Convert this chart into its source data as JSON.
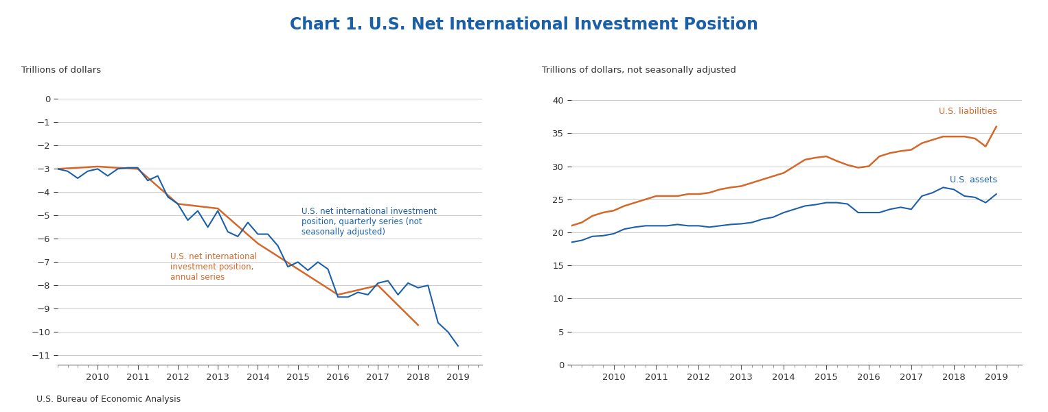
{
  "title": "Chart 1. U.S. Net International Investment Position",
  "title_color": "#1a5fa8",
  "title_fontsize": 17,
  "title_fontweight": "bold",
  "left_ylabel": "Trillions of dollars",
  "right_ylabel": "Trillions of dollars, not seasonally adjusted",
  "left_yticks": [
    0,
    -1,
    -2,
    -3,
    -4,
    -5,
    -6,
    -7,
    -8,
    -9,
    -10,
    -11
  ],
  "right_yticks": [
    0,
    5,
    10,
    15,
    20,
    25,
    30,
    35,
    40
  ],
  "source_text": "U.S. Bureau of Economic Analysis",
  "annual_x": [
    2009.0,
    2010.0,
    2011.0,
    2012.0,
    2013.0,
    2014.0,
    2015.0,
    2016.0,
    2017.0,
    2018.0
  ],
  "annual_y": [
    -3.0,
    -2.9,
    -3.0,
    -4.5,
    -4.7,
    -6.2,
    -7.3,
    -8.4,
    -8.0,
    -9.7
  ],
  "quarterly_x": [
    2009.0,
    2009.25,
    2009.5,
    2009.75,
    2010.0,
    2010.25,
    2010.5,
    2010.75,
    2011.0,
    2011.25,
    2011.5,
    2011.75,
    2012.0,
    2012.25,
    2012.5,
    2012.75,
    2013.0,
    2013.25,
    2013.5,
    2013.75,
    2014.0,
    2014.25,
    2014.5,
    2014.75,
    2015.0,
    2015.25,
    2015.5,
    2015.75,
    2016.0,
    2016.25,
    2016.5,
    2016.75,
    2017.0,
    2017.25,
    2017.5,
    2017.75,
    2018.0,
    2018.25,
    2018.5,
    2018.75,
    2019.0
  ],
  "quarterly_y": [
    -3.0,
    -3.1,
    -3.4,
    -3.1,
    -3.0,
    -3.3,
    -3.0,
    -2.95,
    -2.95,
    -3.5,
    -3.3,
    -4.2,
    -4.5,
    -5.2,
    -4.8,
    -5.5,
    -4.8,
    -5.7,
    -5.9,
    -5.3,
    -5.8,
    -5.8,
    -6.3,
    -7.2,
    -7.0,
    -7.35,
    -7.0,
    -7.3,
    -8.5,
    -8.5,
    -8.3,
    -8.4,
    -7.9,
    -7.8,
    -8.4,
    -7.9,
    -8.1,
    -8.0,
    -9.6,
    -10.0,
    -10.6
  ],
  "assets_x": [
    2009.0,
    2009.25,
    2009.5,
    2009.75,
    2010.0,
    2010.25,
    2010.5,
    2010.75,
    2011.0,
    2011.25,
    2011.5,
    2011.75,
    2012.0,
    2012.25,
    2012.5,
    2012.75,
    2013.0,
    2013.25,
    2013.5,
    2013.75,
    2014.0,
    2014.25,
    2014.5,
    2014.75,
    2015.0,
    2015.25,
    2015.5,
    2015.75,
    2016.0,
    2016.25,
    2016.5,
    2016.75,
    2017.0,
    2017.25,
    2017.5,
    2017.75,
    2018.0,
    2018.25,
    2018.5,
    2018.75,
    2019.0
  ],
  "assets_y": [
    18.5,
    18.8,
    19.4,
    19.5,
    19.8,
    20.5,
    20.8,
    21.0,
    21.0,
    21.0,
    21.2,
    21.0,
    21.0,
    20.8,
    21.0,
    21.2,
    21.3,
    21.5,
    22.0,
    22.3,
    23.0,
    23.5,
    24.0,
    24.2,
    24.5,
    24.5,
    24.3,
    23.0,
    23.0,
    23.0,
    23.5,
    23.8,
    23.5,
    25.5,
    26.0,
    26.8,
    26.5,
    25.5,
    25.3,
    24.5,
    25.8
  ],
  "liabilities_x": [
    2009.0,
    2009.25,
    2009.5,
    2009.75,
    2010.0,
    2010.25,
    2010.5,
    2010.75,
    2011.0,
    2011.25,
    2011.5,
    2011.75,
    2012.0,
    2012.25,
    2012.5,
    2012.75,
    2013.0,
    2013.25,
    2013.5,
    2013.75,
    2014.0,
    2014.25,
    2014.5,
    2014.75,
    2015.0,
    2015.25,
    2015.5,
    2015.75,
    2016.0,
    2016.25,
    2016.5,
    2016.75,
    2017.0,
    2017.25,
    2017.5,
    2017.75,
    2018.0,
    2018.25,
    2018.5,
    2018.75,
    2019.0
  ],
  "liabilities_y": [
    21.0,
    21.5,
    22.5,
    23.0,
    23.3,
    24.0,
    24.5,
    25.0,
    25.5,
    25.5,
    25.5,
    25.8,
    25.8,
    26.0,
    26.5,
    26.8,
    27.0,
    27.5,
    28.0,
    28.5,
    29.0,
    30.0,
    31.0,
    31.3,
    31.5,
    30.8,
    30.2,
    29.8,
    30.0,
    31.5,
    32.0,
    32.3,
    32.5,
    33.5,
    34.0,
    34.5,
    34.5,
    34.5,
    34.2,
    33.0,
    36.0
  ],
  "blue_color": "#1a5fa8",
  "orange_color": "#d4672a",
  "left_annotation_blue": "U.S. net international investment\nposition, quarterly series (not\nseasonally adjusted)",
  "left_annotation_orange": "U.S. net international\ninvestment position,\nannual series",
  "right_annotation_orange": "U.S. liabilities",
  "right_annotation_blue": "U.S. assets",
  "left_xticks": [
    2010,
    2011,
    2012,
    2013,
    2014,
    2015,
    2016,
    2017,
    2018,
    2019
  ],
  "right_xticks": [
    2010,
    2011,
    2012,
    2013,
    2014,
    2015,
    2016,
    2017,
    2018,
    2019
  ]
}
